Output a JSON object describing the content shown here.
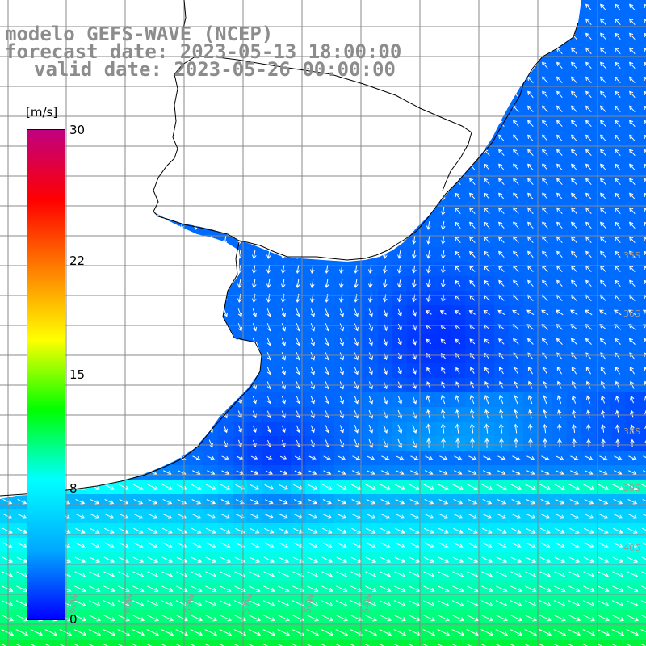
{
  "titles": {
    "line1": "modelo GEFS-WAVE (NCEP)",
    "line2": "forecast date: 2023-05-13 18:00:00",
    "line3": "valid date: 2023-05-26 00:00:00"
  },
  "colorbar": {
    "unit": "[m/s]",
    "ticks": [
      "30",
      "22",
      "15",
      "8",
      "0"
    ],
    "tick_values": [
      30,
      22,
      15,
      8,
      0
    ],
    "min": 0,
    "max": 30,
    "colors": [
      "#0000ff",
      "#00aaff",
      "#00ffff",
      "#00ff00",
      "#ffff00",
      "#ff8000",
      "#ff0000",
      "#c00080"
    ]
  },
  "graticule": {
    "lat_labels": [
      "35S",
      "36S",
      "38S",
      "39S",
      "40S"
    ],
    "lon_labels": [
      "62W",
      "60W",
      "59W",
      "57W",
      "56W",
      "54W"
    ]
  },
  "colors": {
    "land": "#ffffff",
    "coast": "#000000",
    "grid": "#888888",
    "title": "#8c8c8c",
    "arrow": "#ffffff"
  }
}
